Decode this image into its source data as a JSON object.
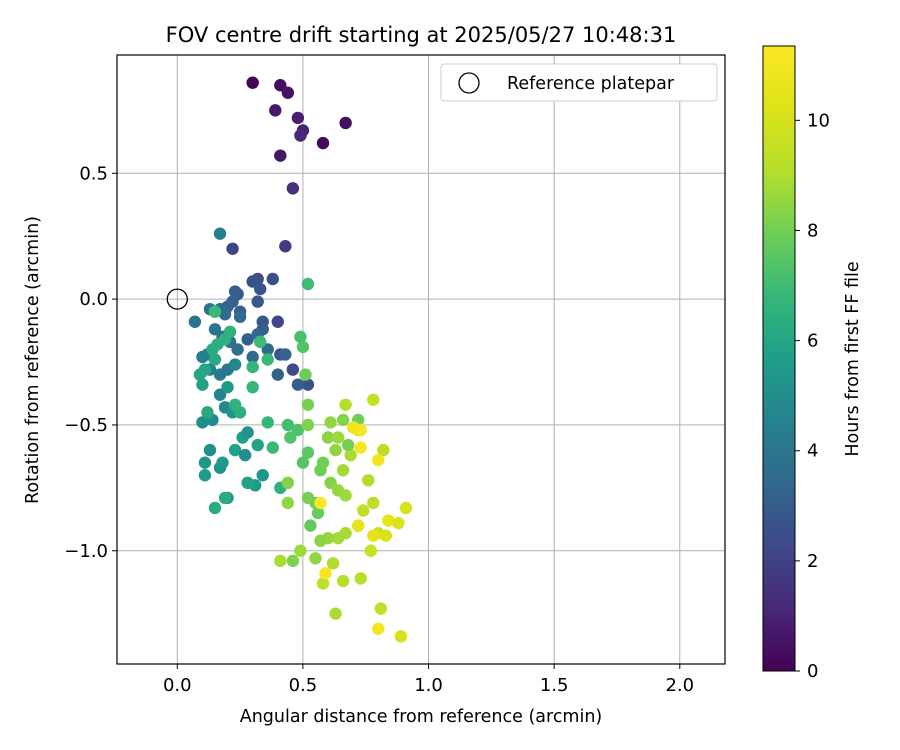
{
  "chart_data": {
    "type": "scatter",
    "title": "FOV centre drift starting at 2025/05/27 10:48:31",
    "xlabel": "Angular distance from reference (arcmin)",
    "ylabel": "Rotation from reference (arcmin)",
    "xlim": [
      -0.24,
      2.18
    ],
    "ylim": [
      -1.45,
      0.97
    ],
    "xticks": [
      0.0,
      0.5,
      1.0,
      1.5,
      2.0
    ],
    "xtick_labels": [
      "0.0",
      "0.5",
      "1.0",
      "1.5",
      "2.0"
    ],
    "yticks": [
      0.5,
      0.0,
      -0.5,
      -1.0
    ],
    "ytick_labels": [
      "0.5",
      "0.0",
      "−0.5",
      "−1.0"
    ],
    "grid": true,
    "legend": {
      "position": "top-right",
      "entries": [
        "Reference platepar"
      ]
    },
    "reference_point": {
      "x": 0.0,
      "y": 0.0
    },
    "colorbar": {
      "label": "Hours from first FF file",
      "colormap": "viridis",
      "min": 0,
      "max": 11.35,
      "ticks": [
        0,
        2,
        4,
        6,
        8,
        10
      ],
      "tick_labels": [
        "0",
        "2",
        "4",
        "6",
        "8",
        "10"
      ]
    },
    "points": [
      [
        0.3,
        0.86,
        0.1
      ],
      [
        0.41,
        0.85,
        0.3
      ],
      [
        0.44,
        0.82,
        0.5
      ],
      [
        0.39,
        0.75,
        0.7
      ],
      [
        0.48,
        0.72,
        0.9
      ],
      [
        0.67,
        0.7,
        0.4
      ],
      [
        0.5,
        0.67,
        1.0
      ],
      [
        0.49,
        0.65,
        1.1
      ],
      [
        0.58,
        0.62,
        0.2
      ],
      [
        0.41,
        0.57,
        0.6
      ],
      [
        0.46,
        0.44,
        1.4
      ],
      [
        0.43,
        0.21,
        1.8
      ],
      [
        0.22,
        0.2,
        2.1
      ],
      [
        0.38,
        0.08,
        2.4
      ],
      [
        0.32,
        0.08,
        2.5
      ],
      [
        0.3,
        0.07,
        2.6
      ],
      [
        0.33,
        0.04,
        2.7
      ],
      [
        0.24,
        0.02,
        2.9
      ],
      [
        0.23,
        0.03,
        3.0
      ],
      [
        0.32,
        -0.01,
        2.8
      ],
      [
        0.22,
        -0.01,
        3.2
      ],
      [
        0.2,
        -0.03,
        3.3
      ],
      [
        0.25,
        -0.05,
        3.1
      ],
      [
        0.25,
        -0.07,
        3.4
      ],
      [
        0.17,
        -0.04,
        3.5
      ],
      [
        0.19,
        -0.06,
        3.6
      ],
      [
        0.13,
        -0.04,
        3.8
      ],
      [
        0.07,
        -0.09,
        3.9
      ],
      [
        0.17,
        0.26,
        4.3
      ],
      [
        0.34,
        -0.09,
        2.9
      ],
      [
        0.4,
        -0.09,
        2.2
      ],
      [
        0.34,
        -0.12,
        3.0
      ],
      [
        0.28,
        -0.16,
        3.1
      ],
      [
        0.36,
        -0.2,
        3.5
      ],
      [
        0.41,
        -0.22,
        2.7
      ],
      [
        0.46,
        -0.28,
        2.3
      ],
      [
        0.43,
        -0.22,
        3.3
      ],
      [
        0.52,
        -0.34,
        2.6
      ],
      [
        0.48,
        -0.34,
        3.0
      ],
      [
        0.4,
        -0.3,
        3.2
      ],
      [
        0.32,
        -0.14,
        3.4
      ],
      [
        0.3,
        -0.23,
        3.6
      ],
      [
        0.24,
        -0.2,
        3.7
      ],
      [
        0.21,
        -0.17,
        3.8
      ],
      [
        0.18,
        -0.15,
        3.9
      ],
      [
        0.15,
        -0.12,
        4.0
      ],
      [
        0.2,
        -0.28,
        4.1
      ],
      [
        0.17,
        -0.3,
        4.2
      ],
      [
        0.12,
        -0.22,
        4.3
      ],
      [
        0.1,
        -0.23,
        4.4
      ],
      [
        0.13,
        -0.28,
        4.5
      ],
      [
        0.17,
        -0.38,
        4.6
      ],
      [
        0.23,
        -0.26,
        4.7
      ],
      [
        0.19,
        -0.43,
        4.8
      ],
      [
        0.14,
        -0.48,
        4.9
      ],
      [
        0.1,
        -0.49,
        5.0
      ],
      [
        0.13,
        -0.6,
        5.1
      ],
      [
        0.17,
        -0.67,
        5.2
      ],
      [
        0.2,
        -0.79,
        5.3
      ],
      [
        0.11,
        -0.65,
        5.4
      ],
      [
        0.11,
        -0.7,
        5.5
      ],
      [
        0.18,
        -0.65,
        5.6
      ],
      [
        0.26,
        -0.55,
        5.7
      ],
      [
        0.23,
        -0.6,
        5.8
      ],
      [
        0.32,
        -0.58,
        5.9
      ],
      [
        0.34,
        -0.7,
        5.4
      ],
      [
        0.31,
        -0.74,
        5.6
      ],
      [
        0.28,
        -0.73,
        5.9
      ],
      [
        0.27,
        -0.62,
        5.0
      ],
      [
        0.28,
        -0.53,
        5.2
      ],
      [
        0.22,
        -0.45,
        5.3
      ],
      [
        0.2,
        -0.35,
        5.5
      ],
      [
        0.1,
        -0.34,
        5.8
      ],
      [
        0.09,
        -0.3,
        6.0
      ],
      [
        0.11,
        -0.28,
        6.1
      ],
      [
        0.15,
        -0.24,
        6.2
      ],
      [
        0.14,
        -0.2,
        6.3
      ],
      [
        0.16,
        -0.18,
        6.4
      ],
      [
        0.19,
        -0.16,
        6.5
      ],
      [
        0.21,
        -0.13,
        6.6
      ],
      [
        0.15,
        -0.05,
        6.9
      ],
      [
        0.12,
        -0.45,
        6.1
      ],
      [
        0.15,
        -0.83,
        6.3
      ],
      [
        0.19,
        -0.79,
        6.2
      ],
      [
        0.25,
        -0.45,
        6.4
      ],
      [
        0.23,
        -0.42,
        6.6
      ],
      [
        0.3,
        -0.27,
        6.7
      ],
      [
        0.3,
        -0.35,
        6.8
      ],
      [
        0.36,
        -0.24,
        6.9
      ],
      [
        0.33,
        -0.17,
        7.0
      ],
      [
        0.36,
        -0.49,
        6.8
      ],
      [
        0.38,
        -0.59,
        6.9
      ],
      [
        0.41,
        -0.75,
        6.5
      ],
      [
        0.44,
        -0.5,
        7.1
      ],
      [
        0.48,
        -0.52,
        7.3
      ],
      [
        0.45,
        -0.55,
        7.4
      ],
      [
        0.5,
        -0.65,
        7.5
      ],
      [
        0.52,
        -0.61,
        7.6
      ],
      [
        0.53,
        -0.9,
        7.7
      ],
      [
        0.56,
        -0.85,
        7.8
      ],
      [
        0.57,
        -0.68,
        7.9
      ],
      [
        0.58,
        -0.65,
        8.0
      ],
      [
        0.49,
        -0.15,
        7.2
      ],
      [
        0.5,
        -0.19,
        7.4
      ],
      [
        0.52,
        0.06,
        7.0
      ],
      [
        0.51,
        -0.3,
        7.9
      ],
      [
        0.52,
        -0.42,
        8.1
      ],
      [
        0.52,
        -0.5,
        8.2
      ],
      [
        0.6,
        -0.55,
        8.4
      ],
      [
        0.63,
        -0.6,
        8.5
      ],
      [
        0.61,
        -0.73,
        8.3
      ],
      [
        0.64,
        -0.76,
        8.6
      ],
      [
        0.67,
        -0.78,
        8.7
      ],
      [
        0.66,
        -0.68,
        8.8
      ],
      [
        0.69,
        -0.62,
        8.9
      ],
      [
        0.72,
        -0.48,
        8.0
      ],
      [
        0.68,
        -0.58,
        8.1
      ],
      [
        0.66,
        -0.48,
        8.3
      ],
      [
        0.61,
        -0.49,
        8.5
      ],
      [
        0.64,
        -0.55,
        8.7
      ],
      [
        0.67,
        -0.42,
        9.1
      ],
      [
        0.78,
        -0.4,
        9.5
      ],
      [
        0.72,
        -0.52,
        9.7
      ],
      [
        0.76,
        -0.72,
        9.0
      ],
      [
        0.82,
        -0.6,
        9.2
      ],
      [
        0.78,
        -0.81,
        9.3
      ],
      [
        0.74,
        -0.84,
        9.4
      ],
      [
        0.72,
        -0.9,
        9.5
      ],
      [
        0.67,
        -0.93,
        8.9
      ],
      [
        0.64,
        -0.95,
        8.8
      ],
      [
        0.6,
        -0.95,
        8.6
      ],
      [
        0.57,
        -0.96,
        8.4
      ],
      [
        0.55,
        -1.03,
        8.5
      ],
      [
        0.49,
        -1.0,
        8.7
      ],
      [
        0.46,
        -1.04,
        8.2
      ],
      [
        0.41,
        -1.04,
        8.9
      ],
      [
        0.52,
        -0.79,
        8.1
      ],
      [
        0.55,
        -0.81,
        8.0
      ],
      [
        0.44,
        -0.73,
        8.3
      ],
      [
        0.44,
        -0.81,
        8.5
      ],
      [
        0.62,
        -1.05,
        9.0
      ],
      [
        0.66,
        -1.12,
        9.1
      ],
      [
        0.58,
        -1.13,
        9.3
      ],
      [
        0.63,
        -1.25,
        8.9
      ],
      [
        0.73,
        -1.11,
        9.2
      ],
      [
        0.77,
        -1.0,
        9.6
      ],
      [
        0.8,
        -0.93,
        9.8
      ],
      [
        0.84,
        -0.88,
        10.6
      ],
      [
        0.88,
        -0.89,
        10.2
      ],
      [
        0.91,
        -0.83,
        10.0
      ],
      [
        0.83,
        -0.94,
        10.1
      ],
      [
        0.78,
        -0.94,
        10.5
      ],
      [
        0.72,
        -0.9,
        10.6
      ],
      [
        0.7,
        -0.51,
        10.9
      ],
      [
        0.73,
        -0.52,
        11.1
      ],
      [
        0.73,
        -0.59,
        11.2
      ],
      [
        0.8,
        -0.64,
        11.0
      ],
      [
        0.57,
        -0.81,
        11.3
      ],
      [
        0.59,
        -1.09,
        11.1
      ],
      [
        0.8,
        -1.31,
        11.0
      ],
      [
        0.81,
        -1.23,
        9.4
      ],
      [
        0.89,
        -1.34,
        10.0
      ]
    ]
  }
}
